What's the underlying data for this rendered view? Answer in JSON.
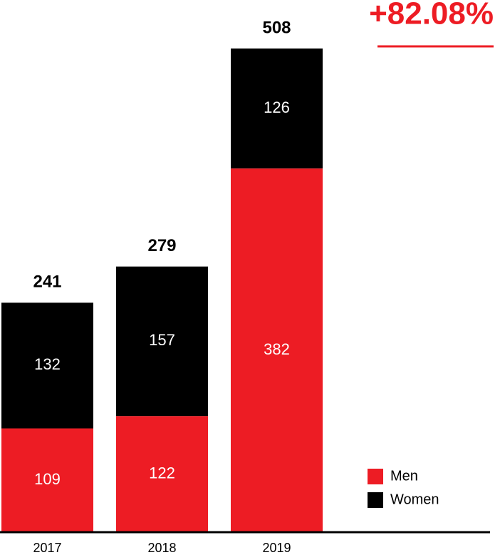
{
  "chart_data": {
    "type": "stacked-bar",
    "categories": [
      "2017",
      "2018",
      "2019"
    ],
    "series": [
      {
        "name": "Men",
        "color": "#ed1c24",
        "values": [
          109,
          122,
          382
        ]
      },
      {
        "name": "Women",
        "color": "#000000",
        "values": [
          132,
          157,
          126
        ]
      }
    ],
    "totals": [
      241,
      279,
      508
    ],
    "annotation": "+82.08%",
    "annotation_color": "#ed1c24",
    "legend": "lower right"
  }
}
